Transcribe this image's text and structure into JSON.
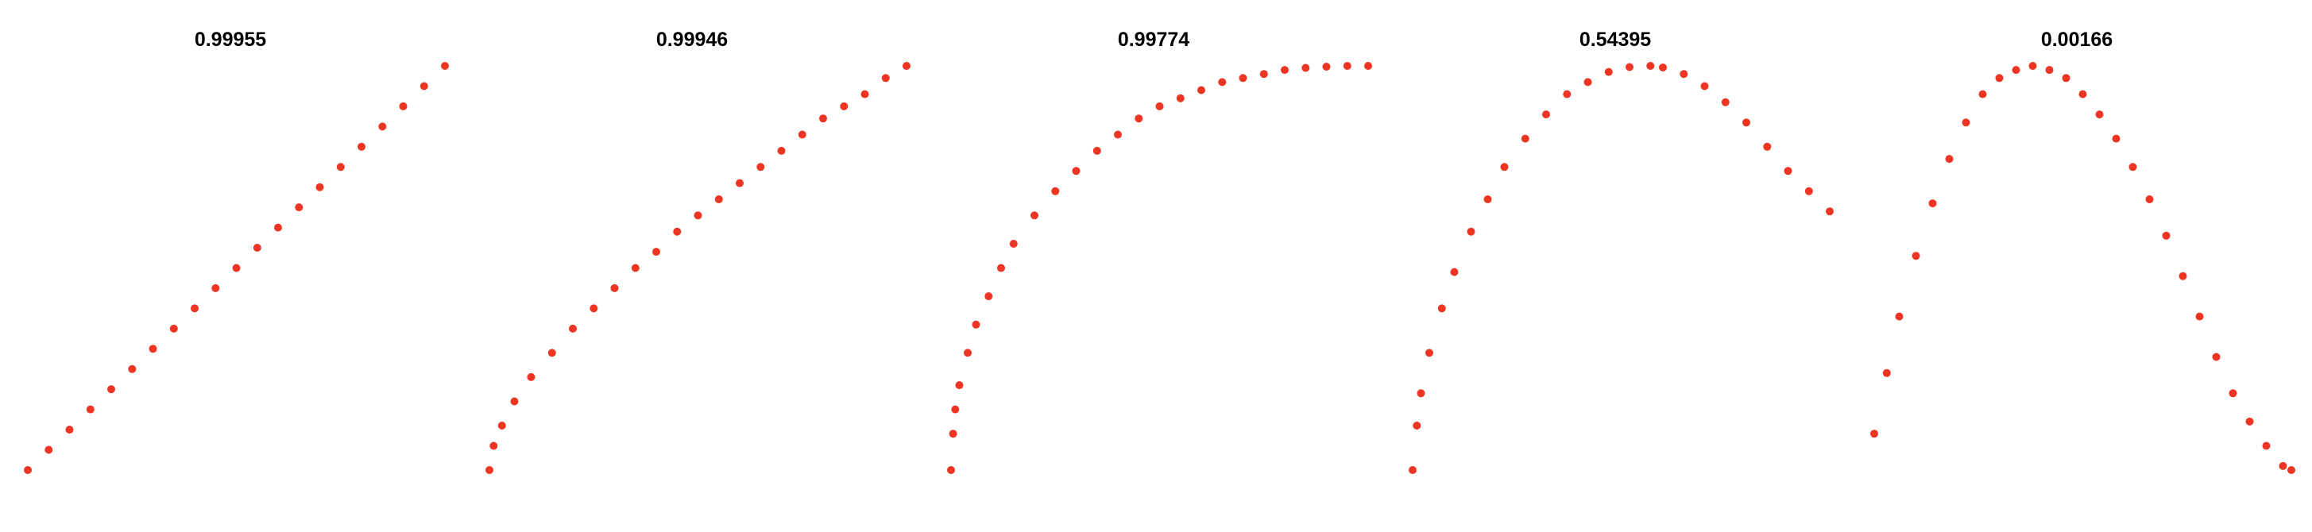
{
  "figure": {
    "point_color": "#ee3524",
    "titles": [
      "0.99955",
      "0.99946",
      "0.99774",
      "0.54395",
      "0.00166"
    ]
  },
  "chart_data": [
    {
      "type": "scatter",
      "title": "0.99955",
      "xlabel": "",
      "ylabel": "",
      "xlim": [
        0,
        1
      ],
      "ylim": [
        0,
        1
      ],
      "axes_visible": false,
      "grid": false,
      "series": [
        {
          "x": [
            0.0,
            0.05,
            0.1,
            0.15,
            0.2,
            0.25,
            0.3,
            0.35,
            0.4,
            0.45,
            0.5,
            0.55,
            0.6,
            0.65,
            0.7,
            0.75,
            0.8,
            0.85,
            0.9,
            0.95,
            1.0
          ],
          "y": [
            0.0,
            0.05,
            0.1,
            0.15,
            0.2,
            0.25,
            0.3,
            0.35,
            0.4,
            0.45,
            0.5,
            0.55,
            0.6,
            0.65,
            0.7,
            0.75,
            0.8,
            0.85,
            0.9,
            0.95,
            1.0
          ]
        }
      ]
    },
    {
      "type": "scatter",
      "title": "0.99946",
      "xlabel": "",
      "ylabel": "",
      "xlim": [
        0,
        1
      ],
      "ylim": [
        0,
        1
      ],
      "axes_visible": false,
      "grid": false,
      "series": [
        {
          "x": [
            0.0,
            0.01,
            0.03,
            0.06,
            0.1,
            0.15,
            0.2,
            0.25,
            0.3,
            0.35,
            0.4,
            0.45,
            0.5,
            0.55,
            0.6,
            0.65,
            0.7,
            0.75,
            0.8,
            0.85,
            0.9,
            0.95,
            1.0
          ],
          "y": [
            0.0,
            0.06,
            0.11,
            0.17,
            0.23,
            0.29,
            0.35,
            0.4,
            0.45,
            0.5,
            0.54,
            0.59,
            0.63,
            0.67,
            0.71,
            0.75,
            0.79,
            0.83,
            0.87,
            0.9,
            0.93,
            0.97,
            1.0
          ]
        }
      ]
    },
    {
      "type": "scatter",
      "title": "0.99774",
      "xlabel": "",
      "ylabel": "",
      "xlim": [
        0,
        1
      ],
      "ylim": [
        0,
        1
      ],
      "axes_visible": false,
      "grid": false,
      "series": [
        {
          "x": [
            0.0,
            0.005,
            0.01,
            0.02,
            0.04,
            0.06,
            0.09,
            0.12,
            0.15,
            0.2,
            0.25,
            0.3,
            0.35,
            0.4,
            0.45,
            0.5,
            0.55,
            0.6,
            0.65,
            0.7,
            0.75,
            0.8,
            0.85,
            0.9,
            0.95,
            1.0
          ],
          "y": [
            0.0,
            0.09,
            0.15,
            0.21,
            0.29,
            0.36,
            0.43,
            0.5,
            0.56,
            0.63,
            0.69,
            0.74,
            0.79,
            0.83,
            0.87,
            0.9,
            0.92,
            0.94,
            0.96,
            0.97,
            0.98,
            0.99,
            0.995,
            0.998,
            1.0,
            1.0
          ]
        }
      ]
    },
    {
      "type": "scatter",
      "title": "0.54395",
      "xlabel": "",
      "ylabel": "",
      "xlim": [
        0,
        1
      ],
      "ylim": [
        0,
        1
      ],
      "axes_visible": false,
      "grid": false,
      "series": [
        {
          "x": [
            0.0,
            0.01,
            0.02,
            0.04,
            0.07,
            0.1,
            0.14,
            0.18,
            0.22,
            0.27,
            0.32,
            0.37,
            0.42,
            0.47,
            0.52,
            0.57,
            0.6,
            0.65,
            0.7,
            0.75,
            0.8,
            0.85,
            0.9,
            0.95,
            1.0
          ],
          "y": [
            0.0,
            0.11,
            0.19,
            0.29,
            0.4,
            0.49,
            0.59,
            0.67,
            0.75,
            0.82,
            0.88,
            0.93,
            0.96,
            0.985,
            0.997,
            1.0,
            0.996,
            0.98,
            0.95,
            0.91,
            0.86,
            0.8,
            0.74,
            0.69,
            0.64
          ]
        }
      ]
    },
    {
      "type": "scatter",
      "title": "0.00166",
      "xlabel": "",
      "ylabel": "",
      "xlim": [
        0,
        1
      ],
      "ylim": [
        0,
        1
      ],
      "axes_visible": false,
      "grid": false,
      "series": [
        {
          "x": [
            0.0,
            0.03,
            0.06,
            0.1,
            0.14,
            0.18,
            0.22,
            0.26,
            0.3,
            0.34,
            0.38,
            0.42,
            0.46,
            0.5,
            0.54,
            0.58,
            0.62,
            0.66,
            0.7,
            0.74,
            0.78,
            0.82,
            0.86,
            0.9,
            0.94,
            0.98,
            1.0
          ],
          "y": [
            0.09,
            0.24,
            0.38,
            0.53,
            0.66,
            0.77,
            0.86,
            0.93,
            0.97,
            0.99,
            1.0,
            0.99,
            0.97,
            0.93,
            0.88,
            0.82,
            0.75,
            0.67,
            0.58,
            0.48,
            0.38,
            0.28,
            0.19,
            0.12,
            0.06,
            0.01,
            0.0
          ]
        }
      ]
    }
  ]
}
